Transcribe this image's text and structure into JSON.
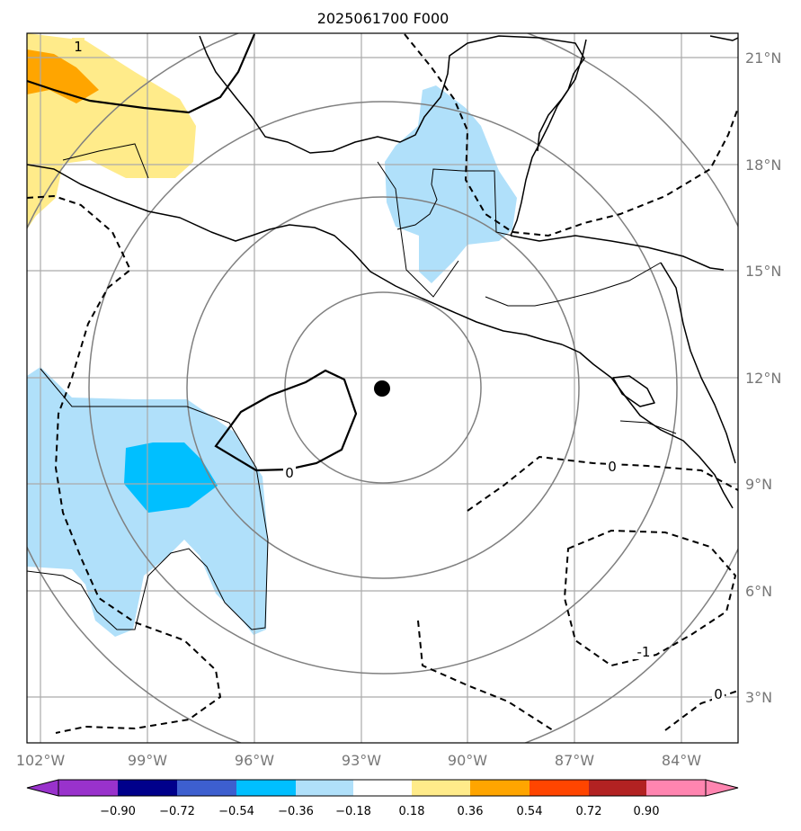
{
  "title": "2025061700 F000",
  "lon_ticks": [
    "102°W",
    "99°W",
    "96°W",
    "93°W",
    "90°W",
    "87°W",
    "84°W"
  ],
  "lat_ticks": [
    "21°N",
    "18°N",
    "15°N",
    "12°N",
    "9°N",
    "6°N",
    "3°N"
  ],
  "contour_labels": [
    "1",
    "0",
    "0",
    "-1",
    "0"
  ],
  "colorbar": {
    "ticks": [
      "−0.90",
      "−0.72",
      "−0.54",
      "−0.36",
      "−0.18",
      "0.18",
      "0.36",
      "0.54",
      "0.72",
      "0.90"
    ],
    "colors": [
      "#9932cc",
      "#00008b",
      "#3d5fcf",
      "#00bfff",
      "#b0e0fa",
      "#ffffff",
      "#ffeb8a",
      "#ffa500",
      "#ff4500",
      "#b22222",
      "#ff85b0"
    ]
  },
  "colors": {
    "fill_yellow": "#ffeb8a",
    "fill_orange": "#ffa500",
    "fill_lightblue": "#b0e0fa",
    "fill_blue": "#00bfff",
    "grid": "#aaaaaa",
    "range_rings": "#808080",
    "center_marker": "#000000"
  },
  "center_marker": {
    "lon": "92.2°W",
    "lat": "11.7°N"
  }
}
